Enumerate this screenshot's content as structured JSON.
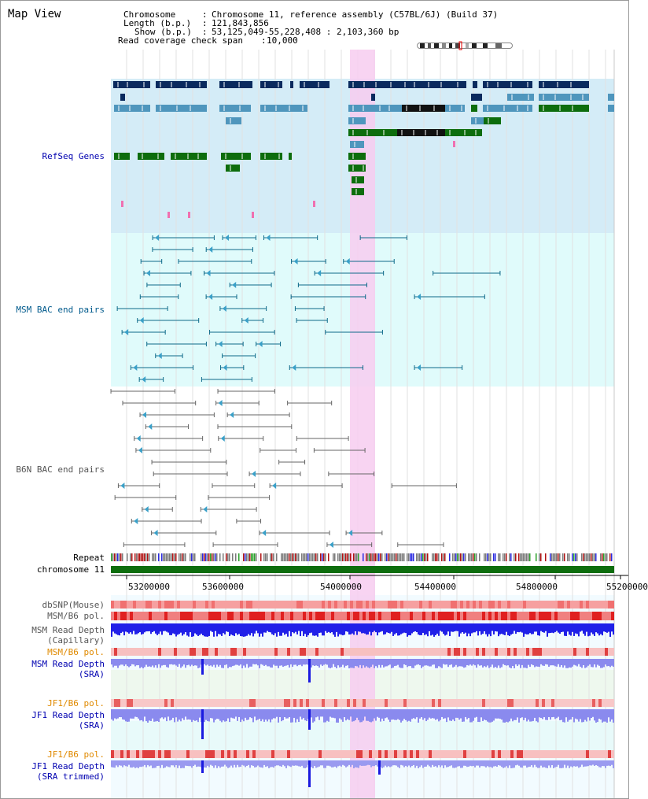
{
  "header": {
    "title": "Map View",
    "chromosome_label": "Chromosome",
    "chromosome_value": "Chromosome 11, reference assembly (C57BL/6J) (Build 37)",
    "length_label": "Length (b.p.)",
    "length_value": "121,843,856",
    "show_label": "Show (b.p.)",
    "show_value": "53,125,049-55,228,408 : 2,103,360 bp",
    "span_label": "Read coverage check span",
    "span_value": "10,000"
  },
  "tracks": {
    "refseq": "RefSeq Genes",
    "msm_bac": "MSM BAC end pairs",
    "b6n_bac": "B6N BAC end pairs",
    "repeat": "Repeat",
    "chromosome": "chromosome 11",
    "dbsnp": "dbSNP(Mouse)",
    "msm_b6_pol_1": "MSM/B6 pol.",
    "msm_depth_cap_1": "MSM Read Depth",
    "msm_depth_cap_2": "(Capillary)",
    "msm_b6_pol_2": "MSM/B6 pol.",
    "msm_depth_sra_1": "MSM Read Depth",
    "msm_depth_sra_2": "(SRA)",
    "jf1_b6_pol_1": "JF1/B6 pol.",
    "jf1_depth_sra_1": "JF1 Read Depth",
    "jf1_depth_sra_2": "(SRA)",
    "jf1_b6_pol_2": "JF1/B6 pol.",
    "jf1_depth_trim_1": "JF1 Read Depth",
    "jf1_depth_trim_2": "(SRA trimmed)"
  },
  "axis": {
    "ticks": [
      "53200000",
      "53600000",
      "54000000",
      "54400000",
      "54800000",
      "55200000"
    ]
  },
  "colors": {
    "refseq_bg": "#d4ecf7",
    "bac_bg": "#e0fbfb",
    "highlight": "#f7ccf0",
    "gene_dark": "#0a2a5e",
    "gene_mid": "#4f96bd",
    "gene_green": "#0d6d0d",
    "msm_label": "#005a8c",
    "b6n_label": "#555555",
    "blue_label": "#0000b0",
    "orange_label": "#e08a00",
    "depth_blue": "#1a1ae0",
    "depth_lilac": "#8a8aee"
  }
}
